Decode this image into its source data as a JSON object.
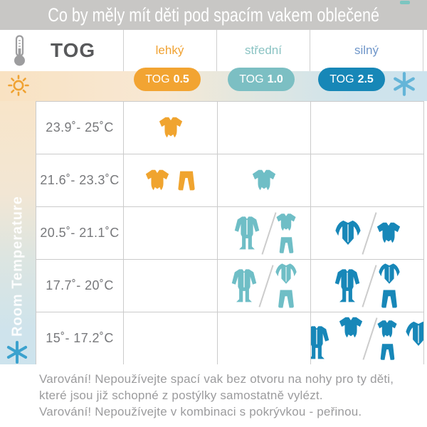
{
  "title": "Co by měly mít děti pod spacím vakem oblečené",
  "header": {
    "tog_label": "TOG",
    "columns": [
      {
        "label": "lehký",
        "label_color": "#F0A232",
        "badge_prefix": "TOG",
        "badge_value": "0.5",
        "badge_color": "#F2A432"
      },
      {
        "label": "střední",
        "label_color": "#8AC3C3",
        "badge_prefix": "TOG",
        "badge_value": "1.0",
        "badge_color": "#7CBFC3"
      },
      {
        "label": "silný",
        "label_color": "#6F96C9",
        "badge_prefix": "TOG",
        "badge_value": "2.5",
        "badge_color": "#1787B7"
      }
    ]
  },
  "sidebar": {
    "label": "Room Temperature"
  },
  "colors": {
    "orange": "#F0A42F",
    "teal": "#6FBEC6",
    "blue": "#1787B8",
    "sun": "#F0A232",
    "snowflake_top": "#64B5D8",
    "snowflake_bottom": "#3BA2CE"
  },
  "rows": [
    {
      "temp": "23.9˚- 25˚C",
      "cells": [
        {
          "color": "#F0A42F",
          "options": [
            {
              "items": [
                {
                  "type": "onesie"
                }
              ]
            }
          ]
        },
        null,
        null
      ]
    },
    {
      "temp": "21.6˚- 23.3˚C",
      "cells": [
        {
          "color": "#F0A42F",
          "options": [
            {
              "items": [
                {
                  "type": "onesie"
                },
                {
                  "type": "pants"
                }
              ]
            }
          ]
        },
        {
          "color": "#6FBEC6",
          "options": [
            {
              "items": [
                {
                  "type": "onesie"
                }
              ]
            }
          ]
        },
        null
      ]
    },
    {
      "temp": "20.5˚- 21.1˚C",
      "cells": [
        null,
        {
          "color": "#6FBEC6",
          "options": [
            {
              "items": [
                {
                  "type": "sleepsuit"
                }
              ]
            },
            {
              "items": [
                {
                  "type": "onesie-stack"
                }
              ]
            }
          ]
        },
        {
          "color": "#1787B8",
          "options": [
            {
              "items": [
                {
                  "type": "wrapshirt"
                }
              ]
            },
            {
              "items": [
                {
                  "type": "onesie"
                }
              ]
            }
          ]
        }
      ]
    },
    {
      "temp": "17.7˚- 20˚C",
      "cells": [
        null,
        {
          "color": "#6FBEC6",
          "options": [
            {
              "items": [
                {
                  "type": "sleepsuit"
                }
              ]
            },
            {
              "items": [
                {
                  "type": "top-stack"
                }
              ]
            }
          ]
        },
        {
          "color": "#1787B8",
          "options": [
            {
              "items": [
                {
                  "type": "sleepsuit"
                }
              ]
            },
            {
              "items": [
                {
                  "type": "top-stack"
                }
              ]
            }
          ]
        }
      ]
    },
    {
      "temp": "15˚- 17.2˚C",
      "cells": [
        null,
        null,
        {
          "color": "#1787B8",
          "options": [
            {
              "items": [
                {
                  "type": "sleepsuit"
                },
                {
                  "type": "onesie"
                }
              ],
              "align": "top"
            },
            {
              "items": [
                {
                  "type": "onesie-stack"
                },
                {
                  "type": "wrapshirt"
                }
              ],
              "align": "top"
            }
          ]
        }
      ]
    }
  ],
  "footer": {
    "lines": [
      "Varování! Nepoužívejte spací vak bez otvoru na nohy pro ty děti,",
      "které jsou již schopné z postýlky samostatně vylézt.",
      "Varování! Nepoužívejte v kombinaci s pokrývkou - peřinou."
    ]
  }
}
